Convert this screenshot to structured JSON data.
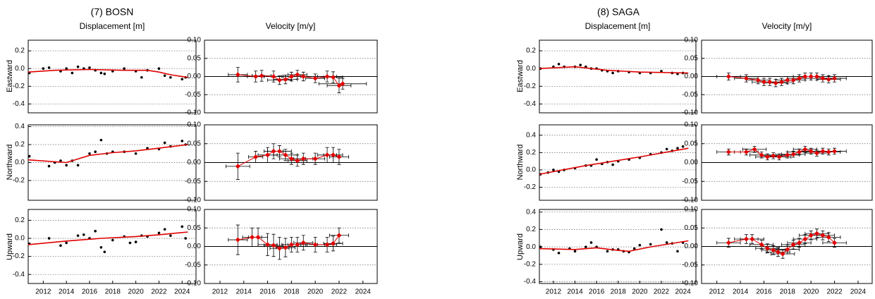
{
  "stations": [
    {
      "title": "(7) BOSN",
      "columns": [
        "Displacement [m]",
        "Velocity [m/y]"
      ],
      "rows": [
        "Eastward",
        "Northward",
        "Upward"
      ]
    },
    {
      "title": "(8) SAGA",
      "columns": [
        "Displacement [m]",
        "Velocity [m/y]"
      ],
      "rows": [
        "Eastward",
        "Northward",
        "Upward"
      ]
    }
  ],
  "chart_data": [
    {
      "type": "scatter",
      "xlim": [
        2010.7,
        2025.2
      ],
      "ylim": [
        -0.5,
        0.32
      ],
      "yticks": [
        -0.4,
        -0.2,
        {
          "value": 0,
          "label": "0.0"
        },
        0.2
      ],
      "grid": true,
      "color": "#000000",
      "fit_color": "#e00000",
      "x": [
        2010.8,
        2012,
        2012.5,
        2013.5,
        2014,
        2014.5,
        2015,
        2015.5,
        2016,
        2016.5,
        2017,
        2017.3,
        2018,
        2019,
        2020,
        2020.5,
        2021,
        2022,
        2022.5,
        2023,
        2024,
        2024.3
      ],
      "values": [
        -0.05,
        0.0,
        0.01,
        -0.03,
        0.0,
        -0.05,
        0.02,
        0.0,
        0.01,
        -0.02,
        -0.05,
        -0.06,
        -0.03,
        0.0,
        -0.03,
        -0.1,
        -0.02,
        0.0,
        -0.08,
        -0.1,
        -0.12,
        -0.1
      ],
      "fit_x": [
        2010.7,
        2013,
        2016,
        2019,
        2021,
        2022,
        2023,
        2024.5
      ],
      "fit_values": [
        -0.04,
        -0.02,
        -0.01,
        -0.02,
        -0.02,
        -0.04,
        -0.07,
        -0.1
      ]
    },
    {
      "type": "errorbar",
      "xlim": [
        2010.7,
        2025.2
      ],
      "ylim": [
        -0.1,
        0.1
      ],
      "yticks": [
        {
          "value": -0.1,
          "label": "-0.10"
        },
        -0.05,
        {
          "value": 0,
          "label": "0.00"
        },
        0.05,
        {
          "value": 0.1,
          "label": "0.10"
        }
      ],
      "grid": true,
      "color": "#e00000",
      "x": [
        2013.5,
        2015,
        2015.5,
        2016.5,
        2017,
        2017.5,
        2018,
        2018.5,
        2019,
        2020,
        2021,
        2021.5,
        2022,
        2022.3
      ],
      "values": [
        0.005,
        0.0,
        0.002,
        0.0,
        -0.01,
        -0.008,
        0.0,
        0.005,
        0.0,
        -0.005,
        0.0,
        -0.002,
        -0.025,
        -0.02
      ],
      "xerr": [
        0.8,
        0.7,
        0.8,
        0.8,
        1,
        1,
        0.8,
        0.8,
        1,
        0.8,
        0.8,
        0.8,
        1,
        2
      ],
      "yerr": [
        0.02,
        0.015,
        0.015,
        0.015,
        0.012,
        0.012,
        0.012,
        0.012,
        0.012,
        0.012,
        0.015,
        0.015,
        0.02,
        0.015
      ]
    },
    {
      "type": "scatter",
      "xlim": [
        2010.7,
        2025.2
      ],
      "ylim": [
        -0.42,
        0.42
      ],
      "yticks": [
        -0.2,
        {
          "value": 0,
          "label": "0.0"
        },
        0.2,
        0.4
      ],
      "grid": true,
      "color": "#000000",
      "fit_color": "#e00000",
      "x": [
        2010.8,
        2012.5,
        2013,
        2013.5,
        2014,
        2014.5,
        2015,
        2016,
        2016.5,
        2017,
        2017.5,
        2018,
        2019,
        2020,
        2021,
        2022,
        2022.5,
        2023,
        2024,
        2024.3
      ],
      "values": [
        0.07,
        -0.04,
        0.0,
        0.02,
        -0.03,
        0.02,
        -0.03,
        0.1,
        0.12,
        0.25,
        0.1,
        0.12,
        0.12,
        0.1,
        0.16,
        0.15,
        0.22,
        0.18,
        0.24,
        0.2
      ],
      "fit_x": [
        2010.7,
        2014,
        2016,
        2018,
        2020,
        2022,
        2024.5
      ],
      "fit_values": [
        0.03,
        0.0,
        0.08,
        0.11,
        0.13,
        0.16,
        0.2
      ]
    },
    {
      "type": "errorbar",
      "xlim": [
        2010.7,
        2025.2
      ],
      "ylim": [
        -0.1,
        0.1
      ],
      "yticks": [
        {
          "value": -0.1,
          "label": "-0.10"
        },
        -0.05,
        {
          "value": 0,
          "label": "0.00"
        },
        0.05,
        {
          "value": 0.1,
          "label": "0.10"
        }
      ],
      "grid": true,
      "color": "#e00000",
      "x": [
        2013.5,
        2015,
        2016,
        2016.5,
        2017,
        2017.5,
        2018,
        2018.5,
        2019,
        2020,
        2021,
        2021.5,
        2022
      ],
      "values": [
        -0.01,
        0.015,
        0.02,
        0.03,
        0.03,
        0.02,
        0.01,
        0.005,
        0.01,
        0.01,
        0.02,
        0.02,
        0.015
      ],
      "xerr": [
        1,
        0.6,
        0.8,
        0.8,
        1,
        1,
        1,
        0.8,
        0.8,
        0.8,
        0.8,
        0.8,
        0.8
      ],
      "yerr": [
        0.035,
        0.015,
        0.02,
        0.02,
        0.015,
        0.015,
        0.015,
        0.015,
        0.015,
        0.015,
        0.02,
        0.02,
        0.02
      ]
    },
    {
      "type": "scatter",
      "xlim": [
        2010.7,
        2025.2
      ],
      "ylim": [
        -0.5,
        0.32
      ],
      "yticks": [
        -0.4,
        -0.2,
        {
          "value": 0,
          "label": "0.0"
        },
        0.2
      ],
      "xticks": [
        2012,
        2014,
        2016,
        2018,
        2020,
        2022,
        2024
      ],
      "grid": true,
      "color": "#000000",
      "fit_color": "#e00000",
      "x": [
        2010.8,
        2012.5,
        2013.5,
        2014,
        2015,
        2015.5,
        2016,
        2016.5,
        2017,
        2017.3,
        2018,
        2019,
        2019.5,
        2020,
        2020.5,
        2021,
        2022,
        2022.5,
        2023,
        2024,
        2024.3
      ],
      "values": [
        -0.06,
        0.0,
        -0.08,
        -0.05,
        0.03,
        0.04,
        0.0,
        0.08,
        -0.1,
        -0.15,
        -0.02,
        0.02,
        -0.05,
        -0.04,
        0.03,
        0.02,
        0.06,
        0.1,
        0.03,
        0.13,
        0.0
      ],
      "fit_x": [
        2010.7,
        2014,
        2017,
        2020,
        2022,
        2024.5
      ],
      "fit_values": [
        -0.07,
        -0.03,
        0.0,
        0.02,
        0.04,
        0.07
      ]
    },
    {
      "type": "errorbar",
      "xlim": [
        2010.7,
        2025.2
      ],
      "ylim": [
        -0.1,
        0.1
      ],
      "yticks": [
        {
          "value": -0.1,
          "label": "-0.10"
        },
        -0.05,
        {
          "value": 0,
          "label": "0.00"
        },
        0.05,
        {
          "value": 0.1,
          "label": "0.10"
        }
      ],
      "xticks": [
        2012,
        2014,
        2016,
        2018,
        2020,
        2022,
        2024
      ],
      "grid": true,
      "color": "#e00000",
      "x": [
        2013.5,
        2014.7,
        2015.2,
        2016,
        2016.5,
        2017,
        2017.5,
        2018,
        2018.5,
        2019,
        2020,
        2021,
        2021.5,
        2022
      ],
      "values": [
        0.018,
        0.025,
        0.025,
        0.005,
        0.003,
        -0.005,
        -0.003,
        0.005,
        0.005,
        0.01,
        0.005,
        0.005,
        0.008,
        0.03
      ],
      "xerr": [
        0.8,
        0.8,
        0.8,
        0.8,
        0.8,
        0.8,
        0.8,
        0.8,
        0.8,
        0.8,
        0.8,
        0.8,
        0.8,
        0.8
      ],
      "yerr": [
        0.04,
        0.025,
        0.025,
        0.03,
        0.03,
        0.03,
        0.025,
        0.02,
        0.02,
        0.02,
        0.02,
        0.02,
        0.02,
        0.02
      ]
    },
    {
      "type": "scatter",
      "xlim": [
        2010.7,
        2025.2
      ],
      "ylim": [
        -0.5,
        0.32
      ],
      "yticks": [
        -0.4,
        -0.2,
        {
          "value": 0,
          "label": "0.0"
        },
        0.2
      ],
      "grid": true,
      "color": "#000000",
      "fit_color": "#e00000",
      "x": [
        2010.8,
        2012,
        2012.5,
        2013,
        2014,
        2014.5,
        2015,
        2015.5,
        2016,
        2016.5,
        2017,
        2017.5,
        2018,
        2019,
        2020,
        2021,
        2022,
        2023,
        2023.5,
        2024
      ],
      "values": [
        0.0,
        0.02,
        0.05,
        0.02,
        0.02,
        0.04,
        0.02,
        0.0,
        0.0,
        -0.02,
        -0.03,
        -0.05,
        -0.03,
        -0.04,
        -0.05,
        -0.05,
        -0.03,
        -0.05,
        -0.06,
        -0.05
      ],
      "fit_x": [
        2010.7,
        2014,
        2017,
        2020,
        2024.5
      ],
      "fit_values": [
        0.0,
        0.02,
        -0.02,
        -0.04,
        -0.05
      ]
    },
    {
      "type": "errorbar",
      "xlim": [
        2010.7,
        2025.2
      ],
      "ylim": [
        -0.1,
        0.1
      ],
      "yticks": [
        {
          "value": -0.1,
          "label": "-0.10"
        },
        -0.05,
        {
          "value": 0,
          "label": "0.00"
        },
        0.05,
        {
          "value": 0.1,
          "label": "0.10"
        }
      ],
      "grid": true,
      "color": "#e00000",
      "x": [
        2013,
        2014.5,
        2015.5,
        2016,
        2016.5,
        2017,
        2017.5,
        2018,
        2018.5,
        2019,
        2019.5,
        2020,
        2020.5,
        2021,
        2021.5,
        2022
      ],
      "values": [
        0.0,
        -0.005,
        -0.01,
        -0.015,
        -0.015,
        -0.018,
        -0.015,
        -0.01,
        -0.01,
        -0.005,
        0.0,
        0.0,
        0.0,
        -0.005,
        -0.008,
        -0.005
      ],
      "xerr": [
        1,
        1,
        1,
        1,
        1,
        1,
        1,
        1,
        1,
        1,
        1,
        1,
        1,
        1,
        1,
        1
      ],
      "yerr": [
        0.01,
        0.01,
        0.01,
        0.01,
        0.01,
        0.01,
        0.01,
        0.01,
        0.01,
        0.01,
        0.01,
        0.01,
        0.01,
        0.01,
        0.01,
        0.01
      ]
    },
    {
      "type": "scatter",
      "xlim": [
        2010.7,
        2025.2
      ],
      "ylim": [
        -0.35,
        0.52
      ],
      "yticks": [
        -0.2,
        {
          "value": 0,
          "label": "0.0"
        },
        0.2,
        0.4
      ],
      "grid": true,
      "color": "#000000",
      "fit_color": "#e00000",
      "x": [
        2010.8,
        2011.5,
        2012,
        2012.5,
        2013,
        2014,
        2015,
        2015.5,
        2016,
        2016.5,
        2017,
        2017.5,
        2018,
        2019,
        2020,
        2021,
        2022,
        2022.5,
        2023,
        2023.5,
        2024
      ],
      "values": [
        -0.05,
        -0.03,
        0.0,
        -0.02,
        0.0,
        0.02,
        0.05,
        0.05,
        0.12,
        0.07,
        0.09,
        0.06,
        0.1,
        0.12,
        0.14,
        0.18,
        0.2,
        0.24,
        0.22,
        0.25,
        0.27
      ],
      "fit_x": [
        2010.7,
        2015,
        2020,
        2024.5
      ],
      "fit_values": [
        -0.05,
        0.05,
        0.15,
        0.25
      ]
    },
    {
      "type": "errorbar",
      "xlim": [
        2010.7,
        2025.2
      ],
      "ylim": [
        -0.1,
        0.1
      ],
      "yticks": [
        {
          "value": -0.1,
          "label": "-0.10"
        },
        -0.05,
        {
          "value": 0,
          "label": "0.00"
        },
        0.05,
        {
          "value": 0.1,
          "label": "0.10"
        }
      ],
      "grid": true,
      "color": "#e00000",
      "x": [
        2013,
        2014.5,
        2015.2,
        2015.8,
        2016.3,
        2016.8,
        2017.3,
        2018,
        2018.5,
        2019,
        2019.5,
        2020,
        2020.5,
        2021,
        2021.5,
        2022
      ],
      "values": [
        0.028,
        0.028,
        0.035,
        0.02,
        0.015,
        0.018,
        0.015,
        0.02,
        0.022,
        0.028,
        0.035,
        0.03,
        0.025,
        0.03,
        0.028,
        0.03
      ],
      "xerr": [
        1,
        1,
        1,
        1,
        1,
        1,
        1,
        1,
        1,
        1,
        1,
        1,
        1,
        1,
        1,
        1
      ],
      "yerr": [
        0.008,
        0.008,
        0.008,
        0.008,
        0.008,
        0.008,
        0.008,
        0.008,
        0.008,
        0.008,
        0.008,
        0.008,
        0.008,
        0.008,
        0.008,
        0.008
      ]
    },
    {
      "type": "scatter",
      "xlim": [
        2010.7,
        2025.2
      ],
      "ylim": [
        -0.42,
        0.43
      ],
      "yticks": [
        -0.4,
        -0.2,
        {
          "value": 0,
          "label": "0.0"
        },
        0.2,
        0.4
      ],
      "xticks": [
        2012,
        2014,
        2016,
        2018,
        2020,
        2022,
        2024
      ],
      "grid": true,
      "color": "#000000",
      "fit_color": "#e00000",
      "x": [
        2010.8,
        2012,
        2012.5,
        2013.5,
        2014,
        2015,
        2015.5,
        2016,
        2017,
        2017.5,
        2018,
        2018.5,
        2019,
        2019.5,
        2020,
        2021,
        2022,
        2022.5,
        2023,
        2023.5,
        2024
      ],
      "values": [
        0.0,
        -0.03,
        -0.07,
        -0.02,
        -0.05,
        0.0,
        0.05,
        0.0,
        -0.05,
        -0.03,
        -0.03,
        -0.05,
        -0.06,
        -0.02,
        0.02,
        0.03,
        0.2,
        0.05,
        0.04,
        -0.05,
        0.05
      ],
      "fit_x": [
        2010.7,
        2014,
        2016,
        2018,
        2019,
        2021,
        2024.5
      ],
      "fit_values": [
        -0.02,
        -0.03,
        -0.01,
        -0.04,
        -0.05,
        0.0,
        0.07
      ]
    },
    {
      "type": "errorbar",
      "xlim": [
        2010.7,
        2025.2
      ],
      "ylim": [
        -0.1,
        0.1
      ],
      "yticks": [
        {
          "value": -0.1,
          "label": "-0.10"
        },
        -0.05,
        {
          "value": 0,
          "label": "0.00"
        },
        0.05,
        {
          "value": 0.1,
          "label": "0.10"
        }
      ],
      "xticks": [
        2012,
        2014,
        2016,
        2018,
        2020,
        2022,
        2024
      ],
      "grid": true,
      "color": "#e00000",
      "x": [
        2013,
        2014.5,
        2015,
        2015.8,
        2016.3,
        2016.8,
        2017.2,
        2017.6,
        2018,
        2018.5,
        2019,
        2019.5,
        2020,
        2020.5,
        2021,
        2021.5,
        2022
      ],
      "values": [
        0.01,
        0.02,
        0.02,
        0.005,
        -0.005,
        -0.01,
        -0.015,
        -0.02,
        -0.008,
        0.005,
        0.01,
        0.02,
        0.03,
        0.035,
        0.03,
        0.025,
        0.01
      ],
      "xerr": [
        1,
        1,
        1,
        1,
        1,
        1,
        1,
        1,
        1,
        1,
        1,
        1,
        1,
        1,
        1,
        1,
        1
      ],
      "yerr": [
        0.012,
        0.012,
        0.012,
        0.012,
        0.012,
        0.012,
        0.012,
        0.012,
        0.012,
        0.012,
        0.012,
        0.012,
        0.012,
        0.012,
        0.012,
        0.012,
        0.012
      ]
    }
  ]
}
